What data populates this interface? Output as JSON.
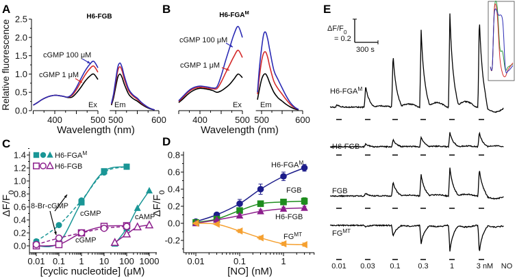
{
  "figure": {
    "panels": [
      "A",
      "B",
      "C",
      "D",
      "E"
    ]
  },
  "chart_data": [
    {
      "panel": "A",
      "type": "line",
      "title": {
        "text": "H6-FGB",
        "sup": ""
      },
      "ylabel": "Relative fluorescence",
      "xlabel": "Wavelength (nm)",
      "ylim": [
        0,
        2.5
      ],
      "yticks": [
        "0.0",
        "0.5",
        "1.0",
        "1.5",
        "2.0",
        "2.5"
      ],
      "ex_xticks": [
        "400",
        "500"
      ],
      "em_xticks": [
        "500",
        "600"
      ],
      "ex_label": "Ex",
      "em_label": "Em",
      "annotations": [
        "cGMP 100 μM",
        "cGMP 1 μM"
      ],
      "ex_wavelengths": [
        350,
        360,
        370,
        380,
        390,
        400,
        410,
        420,
        430,
        440,
        450,
        460,
        470,
        480,
        490,
        500
      ],
      "em_wavelengths": [
        490,
        495,
        500,
        505,
        510,
        515,
        520,
        530,
        540,
        550,
        560,
        570,
        580,
        590
      ],
      "series": [
        {
          "name": "",
          "color": "#000000",
          "ex": [
            0.15,
            0.22,
            0.3,
            0.36,
            0.4,
            0.42,
            0.41,
            0.39,
            0.36,
            0.37,
            0.48,
            0.63,
            0.8,
            0.93,
            1.0,
            0.85
          ],
          "em": [
            0.15,
            0.35,
            0.65,
            0.92,
            1.0,
            0.9,
            0.72,
            0.45,
            0.33,
            0.26,
            0.17,
            0.1,
            0.05,
            0.02
          ]
        },
        {
          "name": "cGMP 1 μM",
          "color": "#d42a2a",
          "ex": [
            0.15,
            0.22,
            0.3,
            0.36,
            0.4,
            0.42,
            0.41,
            0.39,
            0.37,
            0.42,
            0.57,
            0.77,
            0.97,
            1.13,
            1.22,
            1.05
          ],
          "em": [
            0.18,
            0.42,
            0.78,
            1.1,
            1.2,
            1.08,
            0.86,
            0.54,
            0.4,
            0.31,
            0.2,
            0.12,
            0.06,
            0.02
          ]
        },
        {
          "name": "cGMP 100 μM",
          "color": "#2a2ab4",
          "ex": [
            0.15,
            0.22,
            0.3,
            0.36,
            0.4,
            0.42,
            0.41,
            0.39,
            0.37,
            0.45,
            0.63,
            0.86,
            1.08,
            1.25,
            1.35,
            1.17
          ],
          "em": [
            0.19,
            0.46,
            0.85,
            1.2,
            1.3,
            1.17,
            0.94,
            0.59,
            0.43,
            0.34,
            0.22,
            0.13,
            0.06,
            0.02
          ]
        }
      ]
    },
    {
      "panel": "B",
      "type": "line",
      "title": {
        "text": "H6-FGA",
        "sup": "M"
      },
      "xlabel": "Wavelength (nm)",
      "ylim": [
        0,
        2.5
      ],
      "ex_xticks": [
        "400",
        "500"
      ],
      "em_xticks": [
        "500",
        "600"
      ],
      "ex_label": "Ex",
      "em_label": "Em",
      "annotations": [
        "cGMP 100 μM",
        "cGMP 1 μM"
      ],
      "ex_wavelengths": [
        350,
        360,
        370,
        380,
        390,
        400,
        410,
        420,
        430,
        440,
        450,
        460,
        470,
        480,
        490,
        500
      ],
      "em_wavelengths": [
        490,
        495,
        500,
        505,
        510,
        515,
        520,
        530,
        540,
        550,
        560,
        570,
        580,
        590
      ],
      "series": [
        {
          "name": "",
          "color": "#000000",
          "ex": [
            0.22,
            0.32,
            0.43,
            0.52,
            0.58,
            0.61,
            0.6,
            0.58,
            0.55,
            0.5,
            0.54,
            0.62,
            0.72,
            0.86,
            1.0,
            0.9
          ],
          "em": [
            0.3,
            0.6,
            0.85,
            0.98,
            1.0,
            0.9,
            0.75,
            0.5,
            0.35,
            0.26,
            0.17,
            0.1,
            0.05,
            0.02
          ]
        },
        {
          "name": "cGMP 1 μM",
          "color": "#d42a2a",
          "ex": [
            0.25,
            0.36,
            0.48,
            0.57,
            0.62,
            0.64,
            0.63,
            0.61,
            0.6,
            0.6,
            0.78,
            1.02,
            1.25,
            1.48,
            1.65,
            1.45
          ],
          "em": [
            0.45,
            0.95,
            1.35,
            1.57,
            1.6,
            1.45,
            1.2,
            0.8,
            0.6,
            0.45,
            0.3,
            0.17,
            0.08,
            0.03
          ]
        },
        {
          "name": "cGMP 100 μM",
          "color": "#2a2ab4",
          "ex": [
            0.27,
            0.39,
            0.51,
            0.6,
            0.65,
            0.67,
            0.66,
            0.64,
            0.62,
            0.65,
            0.95,
            1.35,
            1.72,
            2.08,
            2.3,
            2.0
          ],
          "em": [
            0.5,
            1.2,
            1.7,
            2.08,
            2.14,
            1.95,
            1.65,
            1.1,
            0.85,
            0.62,
            0.4,
            0.22,
            0.1,
            0.03
          ]
        }
      ]
    },
    {
      "panel": "C",
      "type": "scatter",
      "xlabel": "[cyclic nucleotide] (μM)",
      "ylabel": {
        "text": "ΔF/F",
        "sub": "0"
      },
      "xscale": "log",
      "xlim": [
        0.006,
        1500
      ],
      "ylim": [
        -0.1,
        1.4
      ],
      "xticks": [
        "0.01",
        "0.1",
        "1",
        "10",
        "100",
        "1000"
      ],
      "yticks": [
        "0.0",
        "0.2",
        "0.4",
        "0.6",
        "0.8",
        "1.0",
        "1.2",
        "1.4"
      ],
      "legend": [
        {
          "text": "H6-FGA",
          "sup": "M",
          "color": "#1a9696",
          "filled": true
        },
        {
          "text": "H6-FGB",
          "sup": "",
          "color": "#8c1e8c",
          "filled": false
        }
      ],
      "legend_position": "top-left",
      "annotations": [
        "8-Br-cGMP",
        "cGMP",
        "cGMP",
        "cAMP"
      ],
      "series": [
        {
          "construct": "H6-FGA^M",
          "ligand": "cGMP",
          "marker": "square",
          "color": "#1a9696",
          "filled": true,
          "line": "solid",
          "x": [
            0.01,
            0.1,
            1,
            10,
            100
          ],
          "y": [
            0.0,
            0.05,
            0.67,
            1.15,
            1.22
          ]
        },
        {
          "construct": "H6-FGA^M",
          "ligand": "8-Br-cGMP",
          "marker": "circle",
          "color": "#1a9696",
          "filled": true,
          "line": "dashed",
          "x": [
            0.01,
            0.1,
            1,
            10,
            100
          ],
          "y": [
            0.07,
            0.32,
            0.7,
            1.13,
            1.22
          ]
        },
        {
          "construct": "H6-FGA^M",
          "ligand": "cAMP",
          "marker": "triangle",
          "color": "#1a9696",
          "filled": true,
          "line": "solid",
          "x": [
            30,
            100,
            300,
            1000
          ],
          "y": [
            0.03,
            0.27,
            0.58,
            0.85
          ]
        },
        {
          "construct": "H6-FGB",
          "ligand": "cGMP",
          "marker": "square",
          "color": "#8c1e8c",
          "filled": false,
          "line": "solid",
          "x": [
            0.01,
            0.1,
            1,
            10,
            100
          ],
          "y": [
            0.0,
            0.02,
            0.2,
            0.3,
            0.31
          ]
        },
        {
          "construct": "H6-FGB",
          "ligand": "8-Br-cGMP",
          "marker": "circle",
          "color": "#8c1e8c",
          "filled": false,
          "line": "dashed",
          "x": [
            0.01,
            0.1,
            1,
            10,
            100
          ],
          "y": [
            0.02,
            0.12,
            0.2,
            0.27,
            0.3
          ]
        },
        {
          "construct": "H6-FGB",
          "ligand": "cAMP",
          "marker": "triangle",
          "color": "#8c1e8c",
          "filled": false,
          "line": "solid",
          "x": [
            30,
            100,
            300,
            1000
          ],
          "y": [
            0.05,
            0.18,
            0.29,
            0.32
          ]
        }
      ]
    },
    {
      "panel": "D",
      "type": "scatter",
      "xlabel": "[NO] (nM)",
      "ylabel": {
        "text": "ΔF/F",
        "sub": "0"
      },
      "xscale": "log",
      "xlim": [
        0.0075,
        4.5
      ],
      "ylim": [
        -0.35,
        0.8
      ],
      "xticks": [
        "0.01",
        "0.1",
        "1"
      ],
      "yticks": [
        "-0.2",
        "0.0",
        "0.2",
        "0.4",
        "0.6",
        "0.8"
      ],
      "x": [
        0.01,
        0.03,
        0.1,
        0.3,
        1,
        3
      ],
      "series": [
        {
          "name": "H6-FGA",
          "sup": "M",
          "marker": "circle",
          "color": "#1c1c8a",
          "y": [
            0.02,
            0.1,
            0.23,
            0.4,
            0.55,
            0.65
          ],
          "err": [
            0.01,
            0.02,
            0.05,
            0.06,
            0.05,
            0.04
          ]
        },
        {
          "name": "FGB",
          "sup": "",
          "marker": "square",
          "color": "#1e8c1e",
          "y": [
            0.01,
            0.05,
            0.15,
            0.23,
            0.25,
            0.26
          ],
          "err": [
            0.01,
            0.01,
            0.02,
            0.02,
            0.02,
            0.04
          ]
        },
        {
          "name": "H6-FGB",
          "sup": "",
          "marker": "triangle",
          "color": "#8c1e8c",
          "y": [
            0.0,
            0.04,
            0.09,
            0.14,
            0.17,
            0.18
          ],
          "err": [
            0.01,
            0.01,
            0.02,
            0.02,
            0.02,
            0.02
          ]
        },
        {
          "name": "FG",
          "sup": "MT",
          "marker": "triangle-left",
          "color": "#f5a030",
          "y": [
            0.0,
            -0.01,
            -0.09,
            -0.17,
            -0.24,
            -0.25
          ],
          "err": [
            0.01,
            0.01,
            0.02,
            0.02,
            0.02,
            0.02
          ]
        }
      ]
    },
    {
      "panel": "E",
      "type": "line",
      "scalebar": {
        "y_label": "ΔF/F",
        "y_sub": "0",
        "y_value": "= 0.2",
        "x_label": "300 s"
      },
      "doses": [
        "0.01",
        "0.03",
        "0.1",
        "0.3",
        "1",
        "3 nM"
      ],
      "dose_unit_label": "NO",
      "rows": [
        {
          "name": "H6-FGA",
          "sup": "M",
          "peaks": [
            0.015,
            0.15,
            0.37,
            0.54,
            0.65,
            0.63
          ],
          "undershoot": [
            0,
            0,
            0,
            0,
            0,
            -0.07
          ]
        },
        {
          "name": "H6-FGB",
          "sup": "",
          "peaks": [
            0.0,
            0.02,
            0.05,
            0.07,
            0.1,
            0.1
          ],
          "undershoot": [
            0,
            0,
            0,
            0,
            0,
            0
          ]
        },
        {
          "name": "FGB",
          "sup": "",
          "peaks": [
            0.0,
            0.02,
            0.1,
            0.15,
            0.2,
            0.19
          ],
          "undershoot": [
            0,
            0,
            0,
            0,
            0,
            -0.03
          ]
        },
        {
          "name": "FG",
          "sup": "MT",
          "peaks": [
            0.0,
            -0.01,
            -0.08,
            -0.13,
            -0.18,
            -0.19
          ],
          "undershoot": [
            0,
            0,
            0,
            0,
            0,
            0
          ]
        }
      ],
      "inset": {
        "colors": [
          "#2a9a3a",
          "#d42a2a",
          "#2a2ab4"
        ]
      }
    }
  ]
}
